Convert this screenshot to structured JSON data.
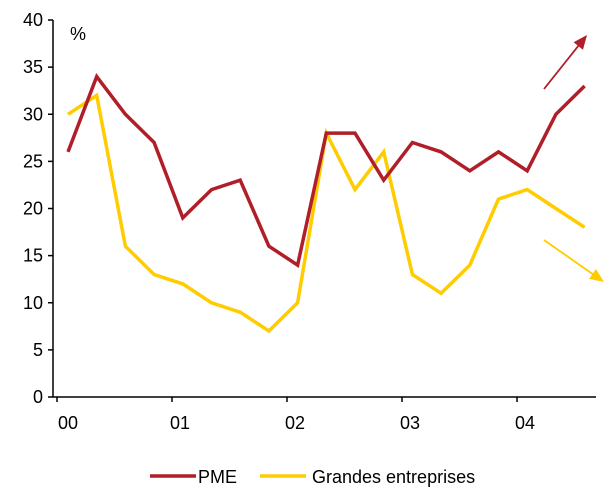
{
  "chart_data": {
    "type": "line",
    "title": "",
    "xlabel": "",
    "ylabel": "",
    "unit_label": "%",
    "x_tick_labels": [
      "00",
      "01",
      "02",
      "03",
      "04"
    ],
    "y_ticks": [
      0,
      5,
      10,
      15,
      20,
      25,
      30,
      35,
      40
    ],
    "ylim": [
      0,
      40
    ],
    "grid": false,
    "legend_position": "bottom",
    "series": [
      {
        "name": "PME",
        "color": "#b01e2a",
        "values": [
          26,
          34,
          30,
          27,
          19,
          22,
          23,
          16,
          14,
          28,
          28,
          23,
          27,
          26,
          24,
          26,
          24,
          30,
          33
        ]
      },
      {
        "name": "Grandes entreprises",
        "color": "#ffcc00",
        "values": [
          30,
          32,
          16,
          13,
          12,
          10,
          9,
          7,
          10,
          28,
          22,
          26,
          13,
          11,
          14,
          21,
          22,
          20,
          18
        ]
      }
    ],
    "annotations": [
      {
        "type": "arrow",
        "series": "PME",
        "direction": "up",
        "color": "#b01e2a"
      },
      {
        "type": "arrow",
        "series": "Grandes entreprises",
        "direction": "down",
        "color": "#ffcc00"
      }
    ]
  }
}
